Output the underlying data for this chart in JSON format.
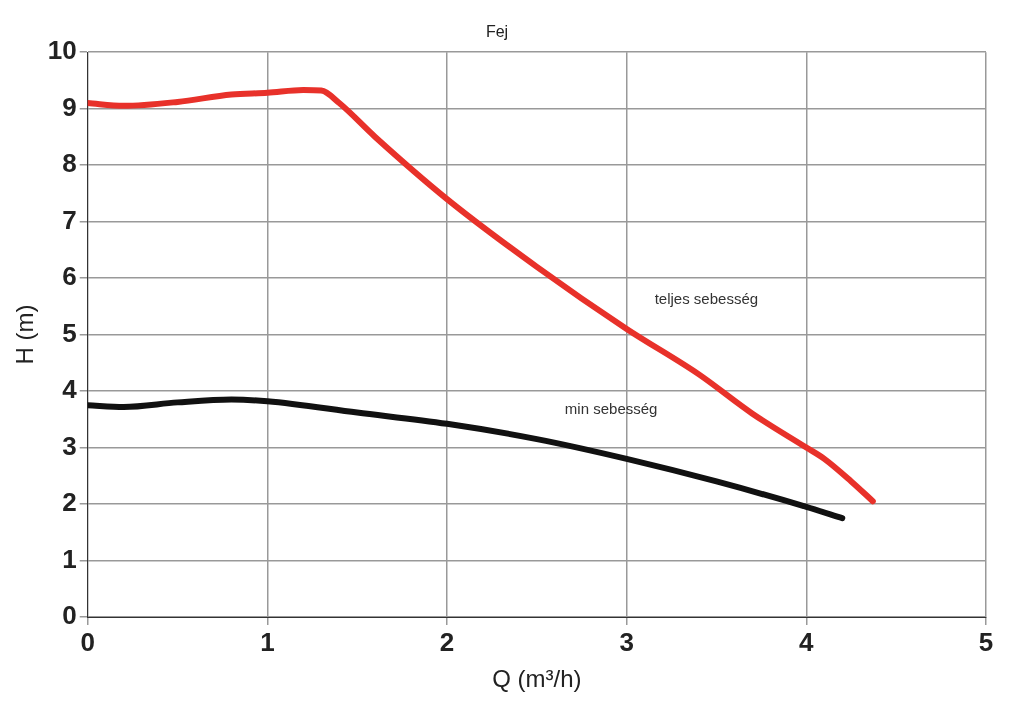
{
  "chart_data": {
    "type": "line",
    "title": "Fej",
    "xlabel": "Q (m³/h)",
    "ylabel": "H (m)",
    "xlim": [
      0,
      5
    ],
    "xticks": [
      0,
      1,
      2,
      3,
      4,
      5
    ],
    "ylim": [
      0,
      10
    ],
    "yticks": [
      0,
      1,
      2,
      3,
      4,
      5,
      6,
      7,
      8,
      9,
      10
    ],
    "grid": true,
    "legend": false,
    "marker": "none",
    "line_style": "solid",
    "series": [
      {
        "name": "teljes sebesség",
        "color": "#e8312a",
        "x": [
          0,
          0.2,
          0.5,
          0.8,
          1.0,
          1.2,
          1.3,
          1.4,
          1.6,
          2.0,
          2.5,
          3.0,
          3.4,
          3.7,
          4.0,
          4.1,
          4.25,
          4.37
        ],
        "values": [
          9.1,
          9.05,
          9.12,
          9.25,
          9.28,
          9.33,
          9.32,
          9.1,
          8.5,
          7.4,
          6.2,
          5.1,
          4.3,
          3.6,
          3.0,
          2.8,
          2.4,
          2.05
        ]
      },
      {
        "name": "min sebesség",
        "color": "#111111",
        "x": [
          0,
          0.2,
          0.5,
          0.8,
          1.0,
          1.5,
          2.0,
          2.5,
          3.0,
          3.5,
          4.0,
          4.2
        ],
        "values": [
          3.75,
          3.72,
          3.8,
          3.85,
          3.82,
          3.62,
          3.42,
          3.15,
          2.8,
          2.4,
          1.95,
          1.75
        ]
      }
    ]
  }
}
